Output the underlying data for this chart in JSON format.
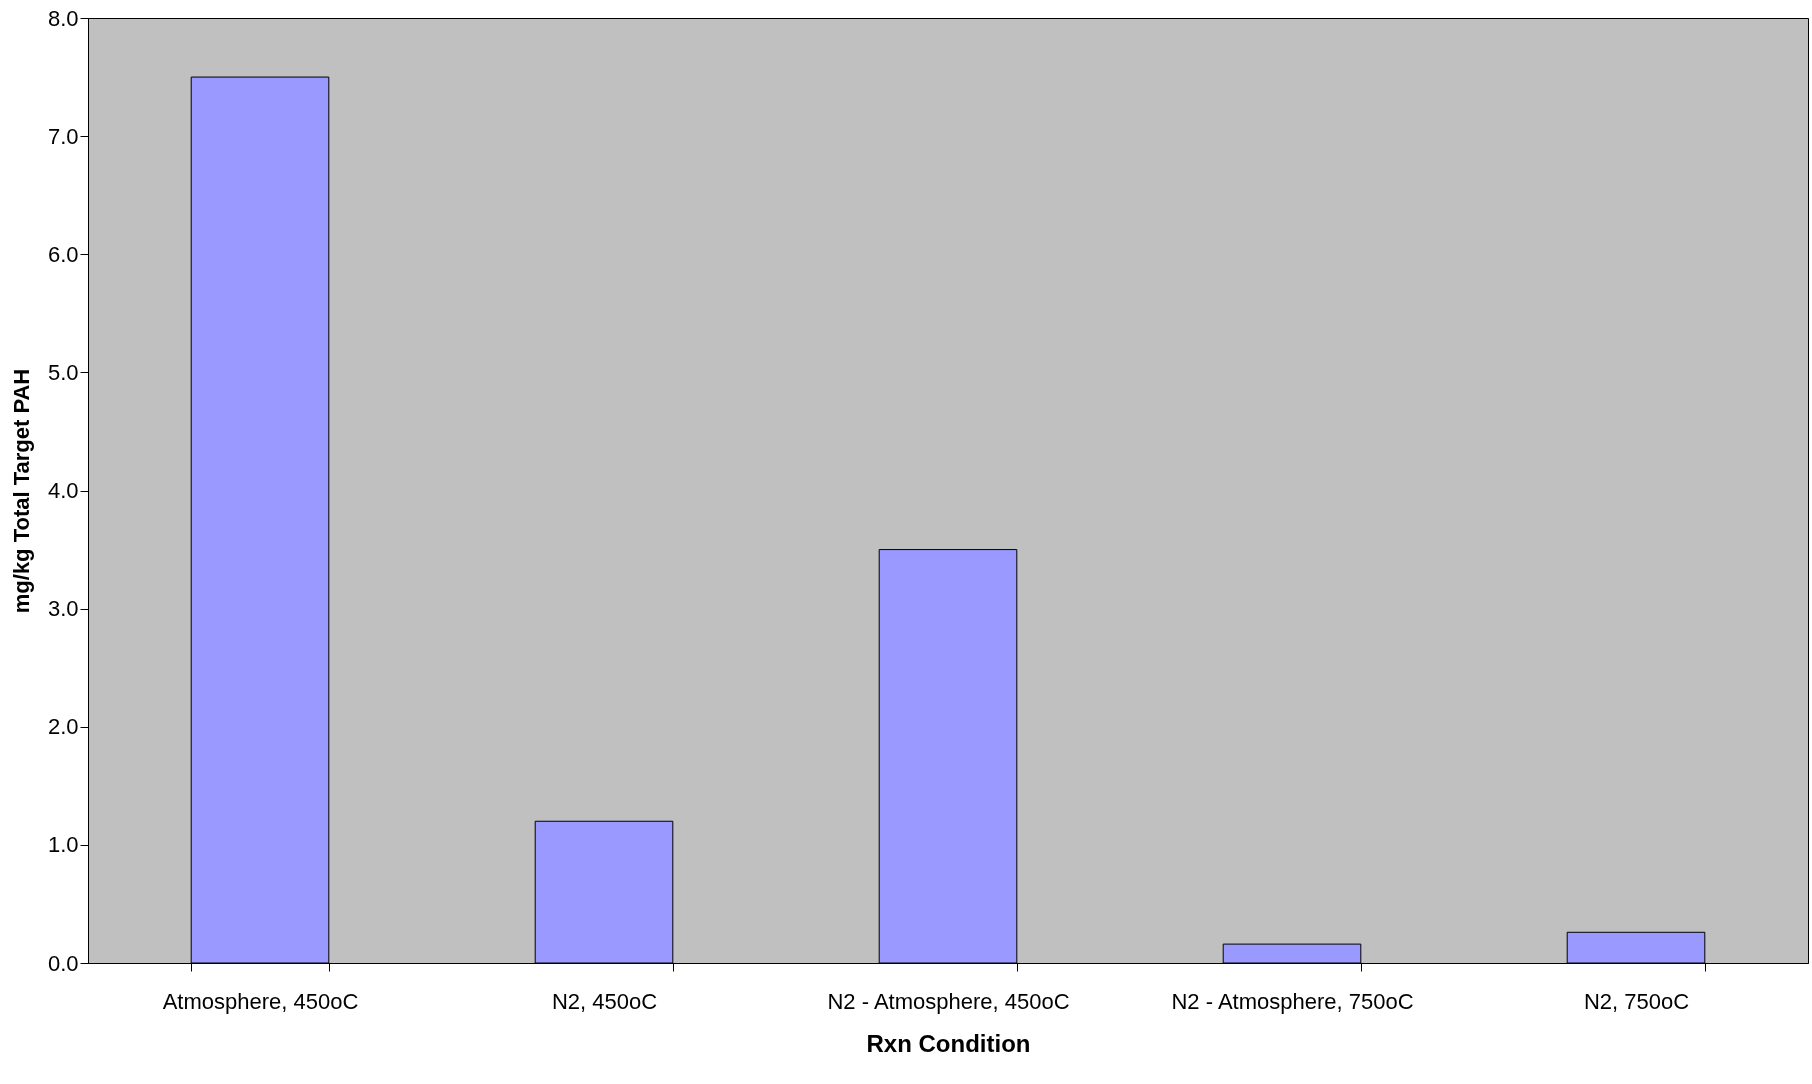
{
  "chart_data": {
    "type": "bar",
    "xlabel": "Rxn Condition",
    "ylabel": "mg/kg Total Target PAH",
    "categories": [
      "Atmosphere, 450oC",
      "N2, 450oC",
      "N2 - Atmosphere, 450oC",
      "N2 - Atmosphere, 750oC",
      "N2, 750oC"
    ],
    "values": [
      7.5,
      1.2,
      3.5,
      0.16,
      0.26
    ],
    "color": "#9999ff",
    "ylim": [
      0,
      8
    ],
    "yticks": [
      {
        "value": 0,
        "label": "0.0"
      },
      {
        "value": 1,
        "label": "1.0"
      },
      {
        "value": 2,
        "label": "2.0"
      },
      {
        "value": 3,
        "label": "3.0"
      },
      {
        "value": 4,
        "label": "4.0"
      },
      {
        "value": 5,
        "label": "5.0"
      },
      {
        "value": 6,
        "label": "6.0"
      },
      {
        "value": 7,
        "label": "7.0"
      },
      {
        "value": 8,
        "label": "8.0"
      }
    ],
    "grid": false,
    "legend": false
  }
}
